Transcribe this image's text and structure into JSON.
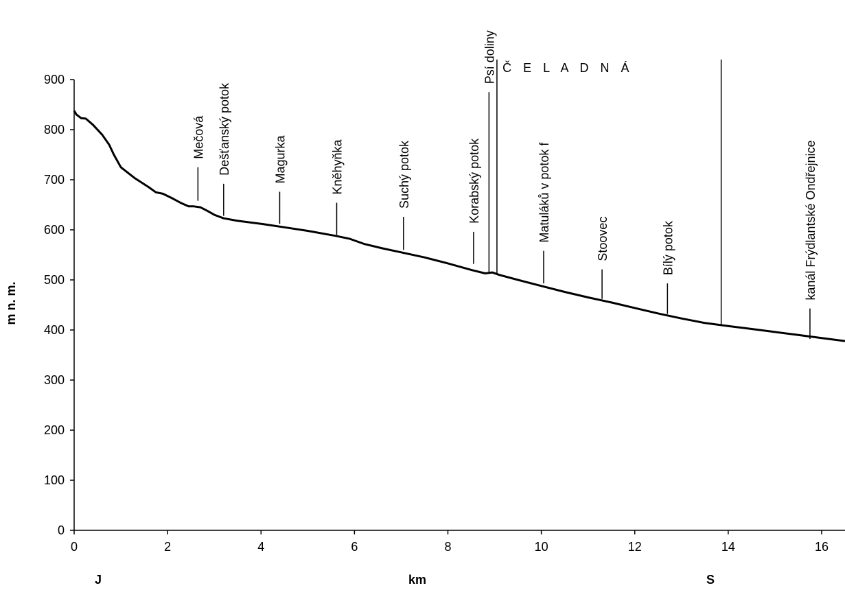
{
  "chart_data": {
    "type": "line",
    "title": "",
    "xlabel": "km",
    "ylabel": "m n. m.",
    "direction_labels": {
      "left": "J",
      "right": "S"
    },
    "xlim": [
      0,
      16.5
    ],
    "ylim": [
      0,
      900
    ],
    "x_ticks": [
      0,
      2,
      4,
      6,
      8,
      10,
      12,
      14,
      16
    ],
    "y_ticks": [
      0,
      100,
      200,
      300,
      400,
      500,
      600,
      700,
      800,
      900
    ],
    "grid": false,
    "legend": "none",
    "line_color": "#000000",
    "series": [
      {
        "x": [
          0,
          0.05,
          0.15,
          0.25,
          0.4,
          0.6,
          0.75,
          0.85,
          1.0,
          1.3,
          1.6,
          1.75,
          1.9,
          2.1,
          2.3,
          2.45,
          2.55,
          2.7,
          2.85,
          3.0,
          3.2,
          3.5,
          4.0,
          4.5,
          5.0,
          5.6,
          5.9,
          6.2,
          6.6,
          7.0,
          7.5,
          8.0,
          8.5,
          8.8,
          8.95,
          9.1,
          9.5,
          10.0,
          10.5,
          11.0,
          11.5,
          12.0,
          12.5,
          13.0,
          13.5,
          14.0,
          14.5,
          15.0,
          15.5,
          16.0,
          16.5
        ],
        "values": [
          838,
          830,
          823,
          822,
          810,
          790,
          770,
          750,
          725,
          703,
          685,
          675,
          672,
          663,
          653,
          647,
          647,
          645,
          638,
          630,
          623,
          618,
          612,
          605,
          598,
          588,
          582,
          572,
          563,
          555,
          545,
          533,
          520,
          513,
          515,
          510,
          500,
          488,
          476,
          465,
          455,
          444,
          433,
          423,
          414,
          408,
          402,
          396,
          390,
          384,
          378
        ]
      }
    ],
    "annotations": [
      {
        "label": "Mečová",
        "x": 2.65,
        "y_top": 725,
        "y_bottom": 658
      },
      {
        "label": "Dešťanský potok",
        "x": 3.2,
        "y_top": 692,
        "y_bottom": 628
      },
      {
        "label": "Magurka",
        "x": 4.4,
        "y_top": 676,
        "y_bottom": 612
      },
      {
        "label": "Kněhyňka",
        "x": 5.62,
        "y_top": 654,
        "y_bottom": 590
      },
      {
        "label": "Suchý potok",
        "x": 7.05,
        "y_top": 626,
        "y_bottom": 560
      },
      {
        "label": "Korabský potok",
        "x": 8.55,
        "y_top": 596,
        "y_bottom": 532
      },
      {
        "label": "Psí doliny",
        "x": 8.88,
        "y_top": 875,
        "y_bottom": 515
      },
      {
        "label": "Matuláků v potok f",
        "x": 10.05,
        "y_top": 558,
        "y_bottom": 493
      },
      {
        "label": "Stoovec",
        "x": 11.3,
        "y_top": 521,
        "y_bottom": 462
      },
      {
        "label": "Bílý potok",
        "x": 12.7,
        "y_top": 493,
        "y_bottom": 432
      },
      {
        "label": "kanál Frýdlantské Ondřejnice",
        "x": 15.75,
        "y_top": 443,
        "y_bottom": 382
      }
    ],
    "region": {
      "label": "Č E L A D N Á",
      "x_start": 9.05,
      "x_end": 13.85,
      "y_top": 940,
      "y_bottom_start": 510,
      "y_bottom_end": 410
    }
  }
}
